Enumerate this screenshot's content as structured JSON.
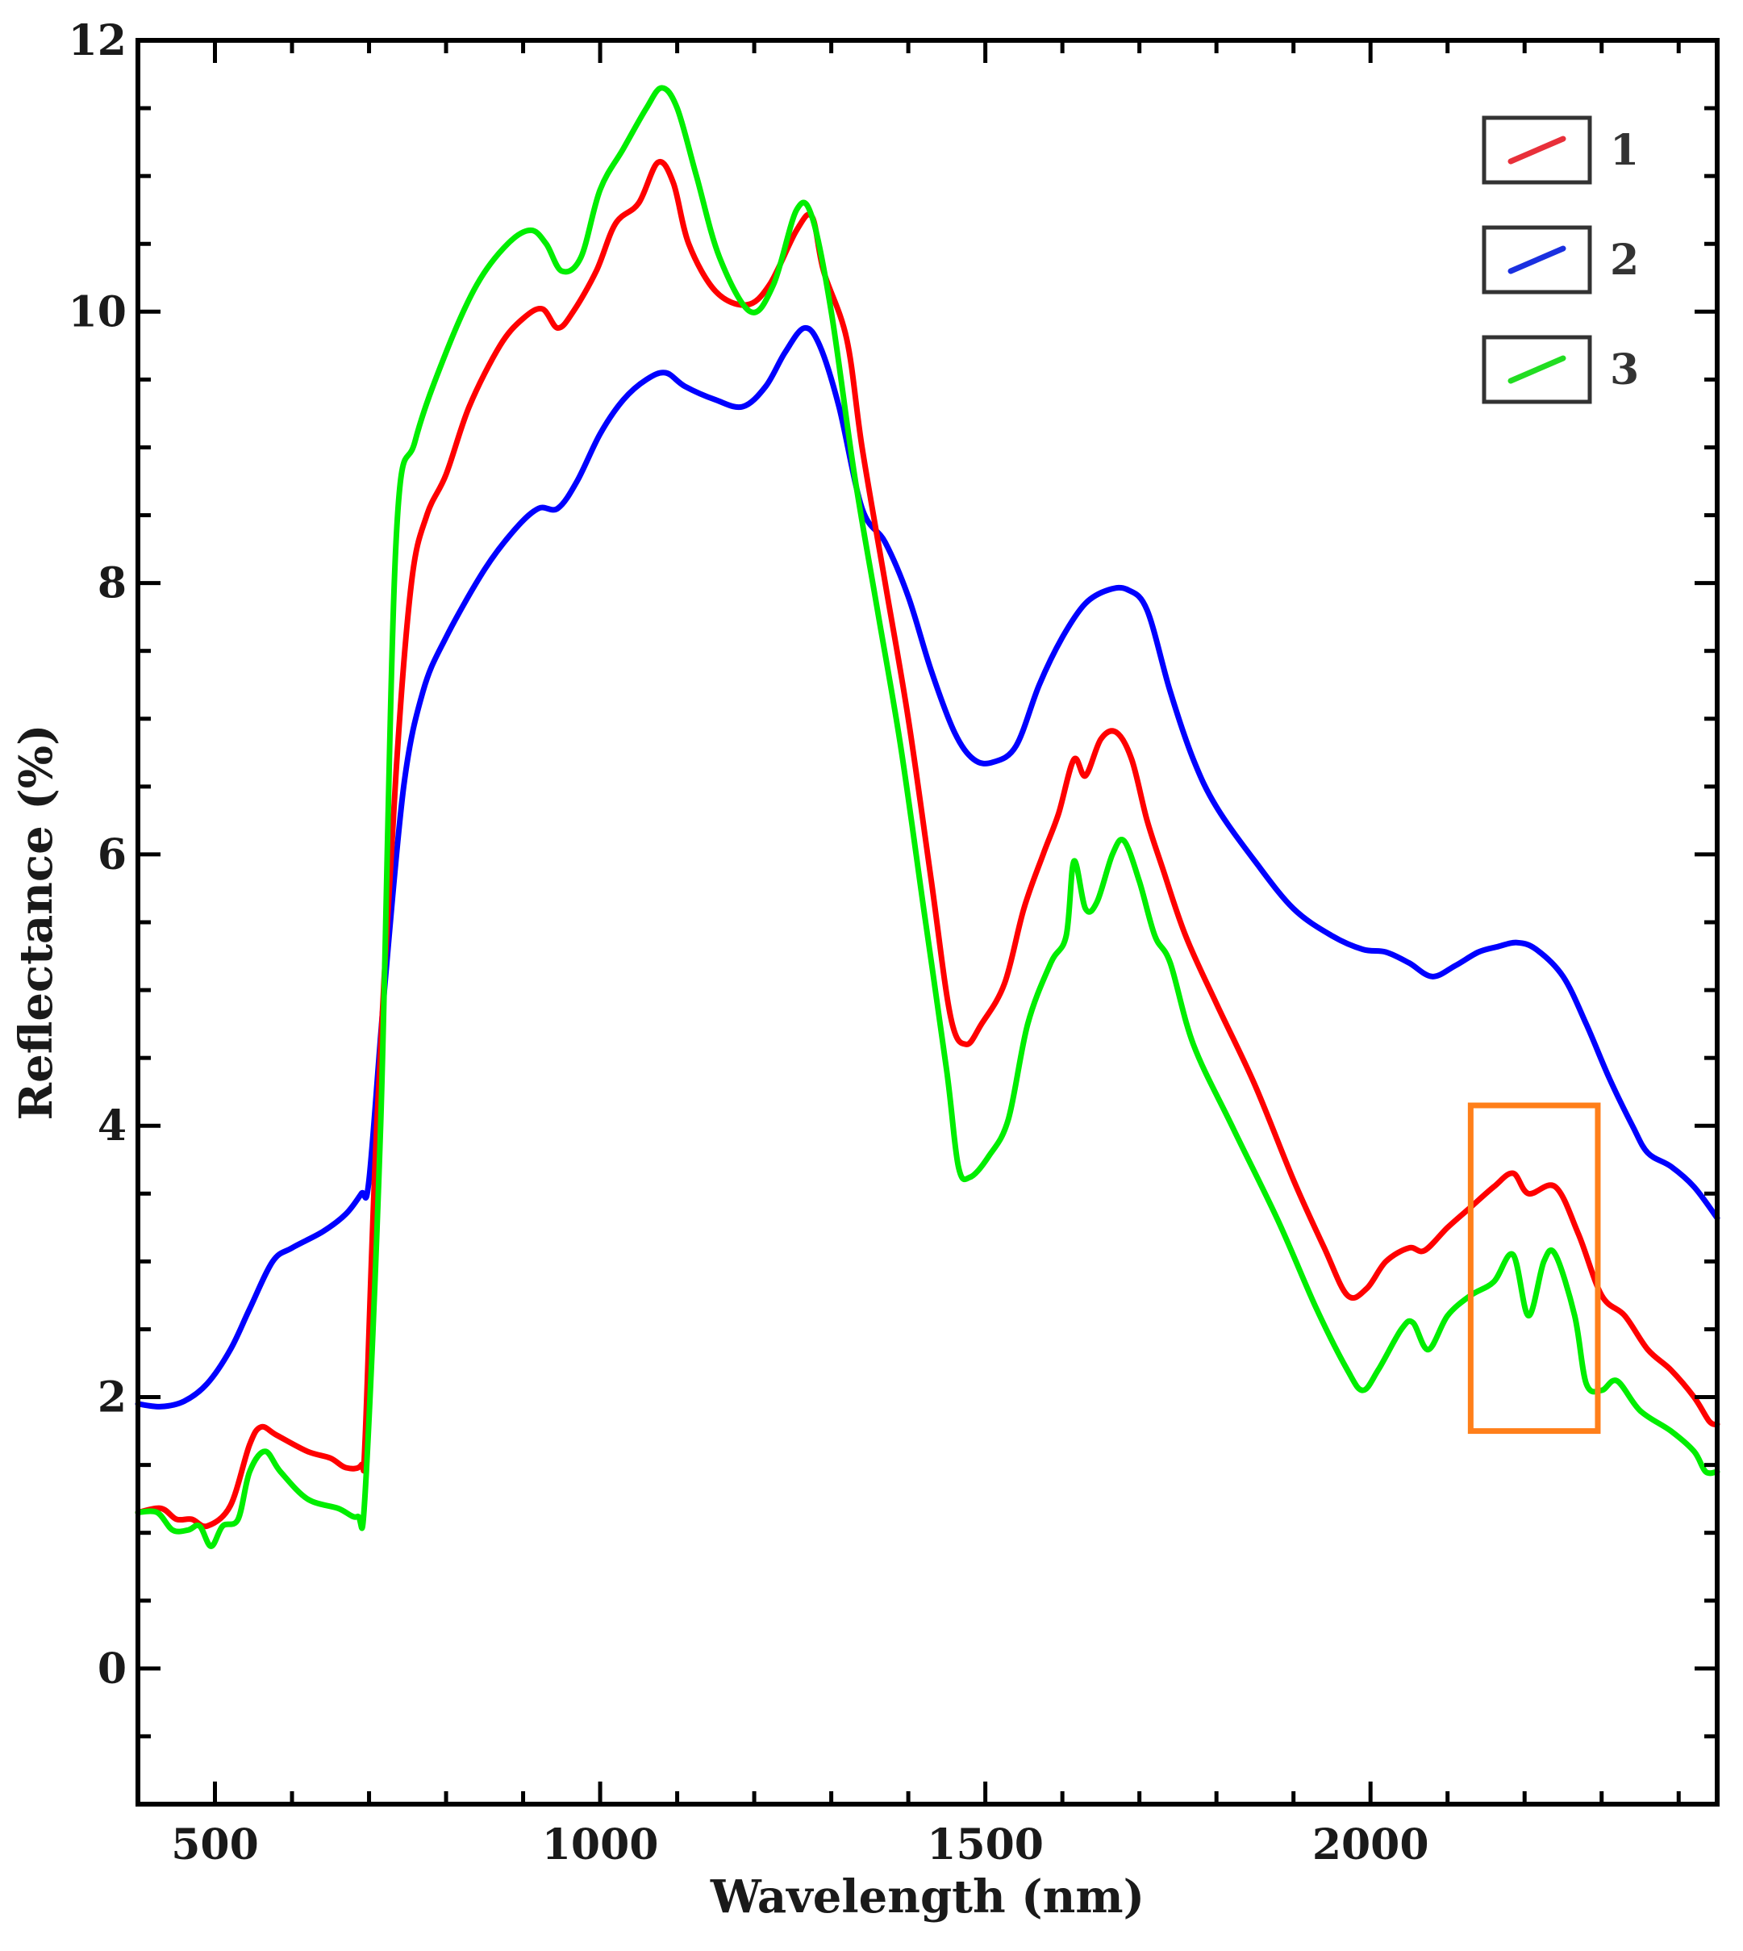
{
  "chart_data": {
    "type": "line",
    "title": "",
    "xlabel": "Wavelength (nm)",
    "ylabel": "Reflectance (%)",
    "xlim": [
      400,
      2450
    ],
    "ylim": [
      -1,
      12
    ],
    "x_ticks": [
      500,
      1000,
      1500,
      2000
    ],
    "y_ticks": [
      0,
      2,
      4,
      6,
      8,
      10,
      12
    ],
    "grid": false,
    "legend_position": "top-right",
    "series": [
      {
        "name": "1",
        "color": "#ff0000",
        "legend_color": "#e8303a",
        "points": [
          [
            400,
            1.15
          ],
          [
            430,
            1.18
          ],
          [
            450,
            1.1
          ],
          [
            470,
            1.1
          ],
          [
            490,
            1.05
          ],
          [
            520,
            1.2
          ],
          [
            545,
            1.65
          ],
          [
            560,
            1.78
          ],
          [
            580,
            1.72
          ],
          [
            620,
            1.6
          ],
          [
            650,
            1.55
          ],
          [
            670,
            1.48
          ],
          [
            690,
            1.5
          ],
          [
            695,
            1.7
          ],
          [
            710,
            4.0
          ],
          [
            735,
            6.6
          ],
          [
            755,
            8.0
          ],
          [
            775,
            8.5
          ],
          [
            800,
            8.8
          ],
          [
            830,
            9.3
          ],
          [
            870,
            9.75
          ],
          [
            900,
            9.95
          ],
          [
            925,
            10.02
          ],
          [
            945,
            9.88
          ],
          [
            965,
            10.0
          ],
          [
            995,
            10.3
          ],
          [
            1020,
            10.65
          ],
          [
            1050,
            10.8
          ],
          [
            1075,
            11.1
          ],
          [
            1095,
            10.95
          ],
          [
            1115,
            10.5
          ],
          [
            1150,
            10.15
          ],
          [
            1190,
            10.05
          ],
          [
            1220,
            10.2
          ],
          [
            1255,
            10.6
          ],
          [
            1275,
            10.7
          ],
          [
            1290,
            10.3
          ],
          [
            1320,
            9.8
          ],
          [
            1340,
            9.0
          ],
          [
            1370,
            8.0
          ],
          [
            1400,
            7.0
          ],
          [
            1430,
            5.8
          ],
          [
            1455,
            4.8
          ],
          [
            1475,
            4.6
          ],
          [
            1495,
            4.75
          ],
          [
            1525,
            5.05
          ],
          [
            1550,
            5.6
          ],
          [
            1575,
            6.0
          ],
          [
            1595,
            6.3
          ],
          [
            1615,
            6.7
          ],
          [
            1630,
            6.58
          ],
          [
            1650,
            6.85
          ],
          [
            1670,
            6.9
          ],
          [
            1690,
            6.7
          ],
          [
            1710,
            6.25
          ],
          [
            1730,
            5.9
          ],
          [
            1760,
            5.4
          ],
          [
            1800,
            4.9
          ],
          [
            1850,
            4.3
          ],
          [
            1900,
            3.6
          ],
          [
            1940,
            3.1
          ],
          [
            1970,
            2.75
          ],
          [
            1995,
            2.8
          ],
          [
            2020,
            3.0
          ],
          [
            2050,
            3.1
          ],
          [
            2070,
            3.08
          ],
          [
            2100,
            3.25
          ],
          [
            2130,
            3.4
          ],
          [
            2160,
            3.55
          ],
          [
            2185,
            3.65
          ],
          [
            2205,
            3.5
          ],
          [
            2240,
            3.55
          ],
          [
            2270,
            3.2
          ],
          [
            2300,
            2.75
          ],
          [
            2330,
            2.6
          ],
          [
            2360,
            2.35
          ],
          [
            2390,
            2.2
          ],
          [
            2420,
            2.0
          ],
          [
            2440,
            1.82
          ],
          [
            2450,
            1.8
          ]
        ]
      },
      {
        "name": "2",
        "color": "#0000ff",
        "legend_color": "#1a30e0",
        "points": [
          [
            400,
            1.95
          ],
          [
            430,
            1.93
          ],
          [
            460,
            1.97
          ],
          [
            490,
            2.1
          ],
          [
            520,
            2.35
          ],
          [
            545,
            2.65
          ],
          [
            575,
            3.0
          ],
          [
            600,
            3.1
          ],
          [
            640,
            3.22
          ],
          [
            670,
            3.35
          ],
          [
            690,
            3.5
          ],
          [
            700,
            3.6
          ],
          [
            720,
            5.0
          ],
          [
            745,
            6.5
          ],
          [
            770,
            7.2
          ],
          [
            800,
            7.6
          ],
          [
            850,
            8.1
          ],
          [
            890,
            8.4
          ],
          [
            920,
            8.55
          ],
          [
            945,
            8.55
          ],
          [
            970,
            8.75
          ],
          [
            1000,
            9.1
          ],
          [
            1030,
            9.35
          ],
          [
            1060,
            9.5
          ],
          [
            1085,
            9.55
          ],
          [
            1110,
            9.45
          ],
          [
            1150,
            9.35
          ],
          [
            1185,
            9.3
          ],
          [
            1215,
            9.45
          ],
          [
            1240,
            9.7
          ],
          [
            1265,
            9.88
          ],
          [
            1285,
            9.75
          ],
          [
            1310,
            9.3
          ],
          [
            1340,
            8.55
          ],
          [
            1370,
            8.3
          ],
          [
            1400,
            7.9
          ],
          [
            1430,
            7.35
          ],
          [
            1460,
            6.9
          ],
          [
            1485,
            6.7
          ],
          [
            1510,
            6.68
          ],
          [
            1540,
            6.8
          ],
          [
            1570,
            7.25
          ],
          [
            1600,
            7.6
          ],
          [
            1630,
            7.85
          ],
          [
            1660,
            7.95
          ],
          [
            1685,
            7.95
          ],
          [
            1710,
            7.8
          ],
          [
            1740,
            7.2
          ],
          [
            1770,
            6.7
          ],
          [
            1800,
            6.35
          ],
          [
            1850,
            5.95
          ],
          [
            1900,
            5.6
          ],
          [
            1950,
            5.4
          ],
          [
            1990,
            5.3
          ],
          [
            2020,
            5.28
          ],
          [
            2050,
            5.2
          ],
          [
            2080,
            5.1
          ],
          [
            2110,
            5.18
          ],
          [
            2140,
            5.28
          ],
          [
            2165,
            5.32
          ],
          [
            2190,
            5.35
          ],
          [
            2215,
            5.3
          ],
          [
            2250,
            5.1
          ],
          [
            2280,
            4.75
          ],
          [
            2310,
            4.35
          ],
          [
            2340,
            4.0
          ],
          [
            2360,
            3.8
          ],
          [
            2390,
            3.7
          ],
          [
            2420,
            3.55
          ],
          [
            2450,
            3.32
          ]
        ]
      },
      {
        "name": "3",
        "color": "#00ee00",
        "legend_color": "#22dd22",
        "points": [
          [
            400,
            1.15
          ],
          [
            425,
            1.15
          ],
          [
            445,
            1.02
          ],
          [
            465,
            1.02
          ],
          [
            480,
            1.05
          ],
          [
            495,
            0.9
          ],
          [
            510,
            1.05
          ],
          [
            530,
            1.1
          ],
          [
            545,
            1.45
          ],
          [
            565,
            1.6
          ],
          [
            585,
            1.45
          ],
          [
            620,
            1.25
          ],
          [
            660,
            1.18
          ],
          [
            685,
            1.12
          ],
          [
            695,
            1.3
          ],
          [
            715,
            4.0
          ],
          [
            735,
            8.3
          ],
          [
            760,
            9.05
          ],
          [
            800,
            9.7
          ],
          [
            840,
            10.2
          ],
          [
            880,
            10.5
          ],
          [
            910,
            10.6
          ],
          [
            930,
            10.5
          ],
          [
            950,
            10.3
          ],
          [
            975,
            10.4
          ],
          [
            1000,
            10.9
          ],
          [
            1030,
            11.2
          ],
          [
            1060,
            11.5
          ],
          [
            1080,
            11.65
          ],
          [
            1100,
            11.5
          ],
          [
            1125,
            11.0
          ],
          [
            1155,
            10.4
          ],
          [
            1195,
            10.0
          ],
          [
            1225,
            10.2
          ],
          [
            1255,
            10.75
          ],
          [
            1275,
            10.7
          ],
          [
            1300,
            10.0
          ],
          [
            1330,
            8.8
          ],
          [
            1360,
            7.8
          ],
          [
            1390,
            6.8
          ],
          [
            1420,
            5.6
          ],
          [
            1450,
            4.4
          ],
          [
            1465,
            3.7
          ],
          [
            1480,
            3.62
          ],
          [
            1505,
            3.78
          ],
          [
            1530,
            4.05
          ],
          [
            1555,
            4.75
          ],
          [
            1585,
            5.2
          ],
          [
            1605,
            5.4
          ],
          [
            1615,
            5.95
          ],
          [
            1630,
            5.6
          ],
          [
            1645,
            5.65
          ],
          [
            1665,
            6.0
          ],
          [
            1680,
            6.1
          ],
          [
            1700,
            5.8
          ],
          [
            1720,
            5.4
          ],
          [
            1740,
            5.2
          ],
          [
            1770,
            4.6
          ],
          [
            1820,
            4.0
          ],
          [
            1880,
            3.3
          ],
          [
            1930,
            2.65
          ],
          [
            1970,
            2.2
          ],
          [
            1990,
            2.05
          ],
          [
            2010,
            2.2
          ],
          [
            2040,
            2.5
          ],
          [
            2055,
            2.55
          ],
          [
            2075,
            2.35
          ],
          [
            2100,
            2.6
          ],
          [
            2130,
            2.75
          ],
          [
            2160,
            2.85
          ],
          [
            2185,
            3.05
          ],
          [
            2205,
            2.6
          ],
          [
            2225,
            3.0
          ],
          [
            2240,
            3.05
          ],
          [
            2265,
            2.6
          ],
          [
            2280,
            2.1
          ],
          [
            2300,
            2.05
          ],
          [
            2320,
            2.12
          ],
          [
            2350,
            1.9
          ],
          [
            2390,
            1.75
          ],
          [
            2420,
            1.6
          ],
          [
            2435,
            1.45
          ],
          [
            2450,
            1.45
          ]
        ]
      }
    ],
    "annotations": [
      {
        "type": "rectangle",
        "color": "#ff7f1a",
        "x_range": [
          2130,
          2295
        ],
        "y_range": [
          1.75,
          4.15
        ]
      }
    ]
  }
}
